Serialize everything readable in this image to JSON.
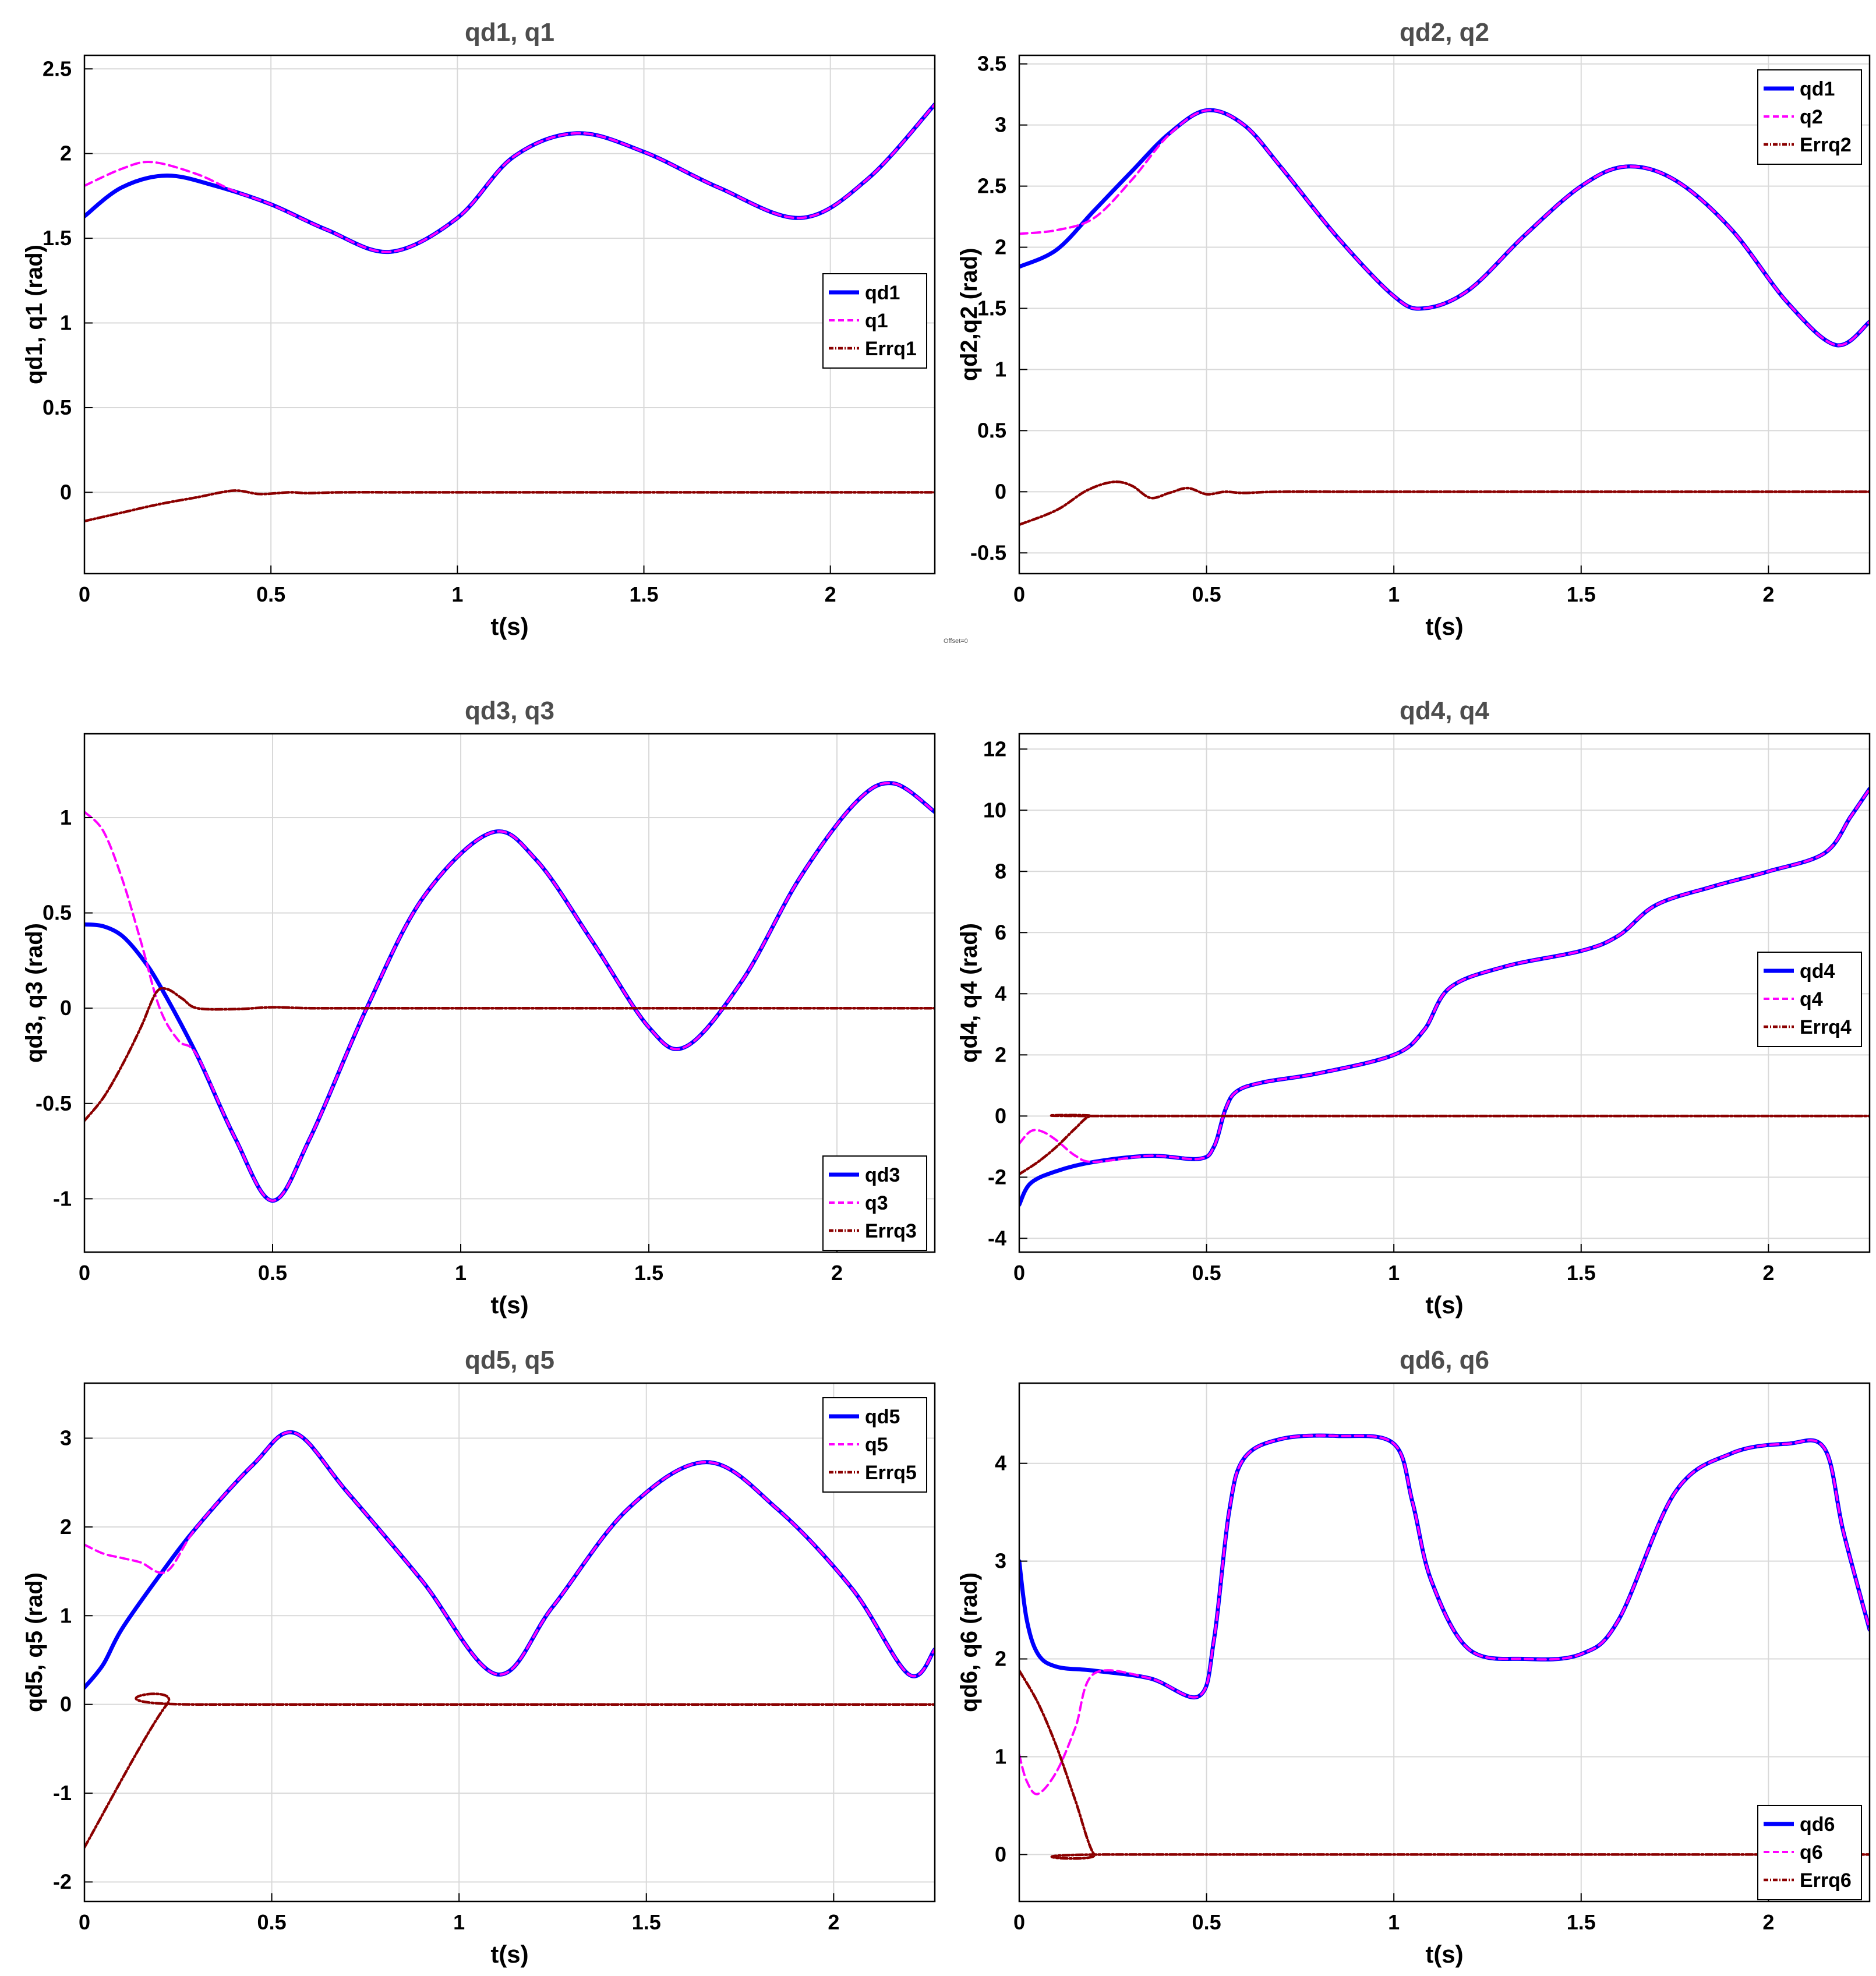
{
  "colors": {
    "desired": "#0000ff",
    "actual": "#ff00ff",
    "error": "#8b0000",
    "grid": "#d9d9d9",
    "axis": "#000000",
    "title": "#4d4d4d"
  },
  "misc": {
    "offset_note": "Offset=0"
  },
  "chart_data": [
    {
      "type": "line",
      "title": "qd1, q1",
      "xlabel": "t(s)",
      "ylabel": "qd1, q1 (rad)",
      "xlim": [
        0,
        2.28
      ],
      "ylim": [
        -0.48,
        2.58
      ],
      "xticks": [
        0,
        0.5,
        1,
        1.5,
        2
      ],
      "xtick_labels": [
        "0",
        "0.5",
        "1",
        "1.5",
        "2"
      ],
      "yticks": [
        0,
        0.5,
        1,
        1.5,
        2,
        2.5
      ],
      "ytick_labels": [
        "0",
        "0.5",
        "1",
        "1.5",
        "2",
        "2.5"
      ],
      "grid": true,
      "legend_position": "middle-right",
      "series": [
        {
          "name": "qd1",
          "style": "solid",
          "x": [
            0,
            0.1,
            0.22,
            0.35,
            0.5,
            0.65,
            0.82,
            1.0,
            1.15,
            1.32,
            1.5,
            1.7,
            1.92,
            2.1,
            2.28
          ],
          "y": [
            1.63,
            1.8,
            1.87,
            1.81,
            1.7,
            1.55,
            1.42,
            1.62,
            1.98,
            2.12,
            2.01,
            1.8,
            1.62,
            1.85,
            2.29
          ]
        },
        {
          "name": "q1",
          "style": "dashed",
          "x": [
            0,
            0.1,
            0.18,
            0.3,
            0.4,
            0.5,
            0.65,
            0.82,
            1.0,
            1.15,
            1.32,
            1.5,
            1.7,
            1.92,
            2.1,
            2.28
          ],
          "y": [
            1.81,
            1.91,
            1.95,
            1.88,
            1.78,
            1.7,
            1.55,
            1.42,
            1.62,
            1.98,
            2.12,
            2.01,
            1.8,
            1.62,
            1.85,
            2.29
          ]
        },
        {
          "name": "Errq1",
          "style": "dashdot",
          "x": [
            0,
            0.1,
            0.2,
            0.3,
            0.4,
            0.47,
            0.55,
            0.6,
            0.7,
            1.0,
            2.28
          ],
          "y": [
            -0.17,
            -0.12,
            -0.07,
            -0.03,
            0.01,
            -0.01,
            0.0,
            -0.005,
            0.0,
            0.0,
            0.0
          ]
        }
      ]
    },
    {
      "type": "line",
      "title": "qd2, q2",
      "xlabel": "t(s)",
      "ylabel": "qd2,q2 (rad)",
      "xlim": [
        0,
        2.27
      ],
      "ylim": [
        -0.67,
        3.57
      ],
      "xticks": [
        0,
        0.5,
        1,
        1.5,
        2
      ],
      "xtick_labels": [
        "0",
        "0.5",
        "1",
        "1.5",
        "2"
      ],
      "yticks": [
        -0.5,
        0,
        0.5,
        1,
        1.5,
        2,
        2.5,
        3,
        3.5
      ],
      "ytick_labels": [
        "-0.5",
        "0",
        "0.5",
        "1",
        "1.5",
        "2",
        "2.5",
        "3",
        "3.5"
      ],
      "grid": true,
      "legend_position": "top-right",
      "series": [
        {
          "name": "qd1",
          "style": "solid",
          "x": [
            0,
            0.1,
            0.2,
            0.3,
            0.4,
            0.5,
            0.6,
            0.7,
            0.85,
            1.0,
            1.08,
            1.2,
            1.35,
            1.5,
            1.62,
            1.75,
            1.9,
            2.05,
            2.18,
            2.27
          ],
          "y": [
            1.84,
            1.98,
            2.3,
            2.62,
            2.93,
            3.12,
            3.0,
            2.65,
            2.08,
            1.6,
            1.5,
            1.65,
            2.1,
            2.5,
            2.66,
            2.55,
            2.15,
            1.55,
            1.2,
            1.39
          ]
        },
        {
          "name": "q2",
          "style": "dashed",
          "x": [
            0,
            0.1,
            0.2,
            0.3,
            0.4,
            0.5,
            0.6,
            0.7,
            0.85,
            1.0,
            1.08,
            1.2,
            1.35,
            1.5,
            1.62,
            1.75,
            1.9,
            2.05,
            2.18,
            2.27
          ],
          "y": [
            2.11,
            2.14,
            2.24,
            2.55,
            2.92,
            3.12,
            3.0,
            2.65,
            2.08,
            1.6,
            1.5,
            1.65,
            2.1,
            2.5,
            2.66,
            2.55,
            2.15,
            1.55,
            1.2,
            1.39
          ]
        },
        {
          "name": "Errq2",
          "style": "dashdot",
          "x": [
            0,
            0.1,
            0.18,
            0.25,
            0.3,
            0.35,
            0.4,
            0.45,
            0.5,
            0.55,
            0.6,
            0.7,
            1.0,
            2.27
          ],
          "y": [
            -0.27,
            -0.15,
            0.01,
            0.08,
            0.05,
            -0.05,
            -0.01,
            0.03,
            -0.02,
            0.0,
            -0.01,
            0.0,
            0.0,
            0.0
          ]
        }
      ]
    },
    {
      "type": "line",
      "title": "qd3, q3",
      "xlabel": "t(s)",
      "ylabel": "qd3, q3 (rad)",
      "xlim": [
        0,
        2.26
      ],
      "ylim": [
        -1.28,
        1.44
      ],
      "xticks": [
        0,
        0.5,
        1,
        1.5,
        2
      ],
      "xtick_labels": [
        "0",
        "0.5",
        "1",
        "1.5",
        "2"
      ],
      "yticks": [
        -1,
        -0.5,
        0,
        0.5,
        1
      ],
      "ytick_labels": [
        "-1",
        "-0.5",
        "0",
        "0.5",
        "1"
      ],
      "grid": true,
      "legend_position": "bottom-right",
      "series": [
        {
          "name": "qd3",
          "style": "solid",
          "x": [
            0,
            0.05,
            0.1,
            0.15,
            0.2,
            0.3,
            0.4,
            0.5,
            0.6,
            0.75,
            0.9,
            1.08,
            1.2,
            1.35,
            1.5,
            1.6,
            1.75,
            1.9,
            2.05,
            2.15,
            2.26
          ],
          "y": [
            0.44,
            0.43,
            0.38,
            0.27,
            0.12,
            -0.25,
            -0.68,
            -1.01,
            -0.68,
            0.0,
            0.58,
            0.92,
            0.78,
            0.35,
            -0.1,
            -0.2,
            0.15,
            0.68,
            1.08,
            1.18,
            1.03
          ]
        },
        {
          "name": "q3",
          "style": "dashed",
          "x": [
            0,
            0.05,
            0.1,
            0.15,
            0.2,
            0.25,
            0.3,
            0.4,
            0.5,
            0.6,
            0.75,
            0.9,
            1.08,
            1.2,
            1.35,
            1.5,
            1.6,
            1.75,
            1.9,
            2.05,
            2.15,
            2.26
          ],
          "y": [
            1.03,
            0.93,
            0.68,
            0.35,
            0.0,
            -0.17,
            -0.25,
            -0.68,
            -1.01,
            -0.68,
            0.0,
            0.58,
            0.92,
            0.78,
            0.35,
            -0.1,
            -0.2,
            0.15,
            0.68,
            1.08,
            1.18,
            1.03
          ]
        },
        {
          "name": "Errq3",
          "style": "dashdot",
          "x": [
            0,
            0.05,
            0.1,
            0.15,
            0.19,
            0.22,
            0.26,
            0.3,
            0.4,
            0.5,
            0.6,
            0.8,
            2.26
          ],
          "y": [
            -0.59,
            -0.47,
            -0.3,
            -0.1,
            0.08,
            0.1,
            0.05,
            0.0,
            -0.005,
            0.005,
            0.0,
            0.0,
            0.0
          ]
        }
      ]
    },
    {
      "type": "line",
      "title": "qd4, q4",
      "xlabel": "t(s)",
      "ylabel": "qd4, q4 (rad)",
      "xlim": [
        0,
        2.27
      ],
      "ylim": [
        -4.45,
        12.5
      ],
      "xticks": [
        0,
        0.5,
        1,
        1.5,
        2
      ],
      "xtick_labels": [
        "0",
        "0.5",
        "1",
        "1.5",
        "2"
      ],
      "yticks": [
        -4,
        -2,
        0,
        2,
        4,
        6,
        8,
        10,
        12
      ],
      "ytick_labels": [
        "-4",
        "-2",
        "0",
        "2",
        "4",
        "6",
        "8",
        "10",
        "12"
      ],
      "grid": true,
      "legend_position": "middle-right",
      "series": [
        {
          "name": "qd4",
          "style": "solid",
          "x": [
            0,
            0.03,
            0.1,
            0.2,
            0.35,
            0.48,
            0.52,
            0.55,
            0.58,
            0.65,
            0.8,
            1.0,
            1.08,
            1.15,
            1.3,
            1.5,
            1.6,
            1.7,
            1.85,
            2.0,
            2.15,
            2.22,
            2.27
          ],
          "y": [
            -2.9,
            -2.2,
            -1.8,
            -1.5,
            -1.3,
            -1.4,
            -1.0,
            0.2,
            0.8,
            1.1,
            1.4,
            2.0,
            2.8,
            4.2,
            4.9,
            5.4,
            5.9,
            6.9,
            7.5,
            8.0,
            8.6,
            9.8,
            10.7
          ]
        },
        {
          "name": "q4",
          "style": "dashed",
          "x": [
            0,
            0.03,
            0.06,
            0.1,
            0.15,
            0.2,
            0.35,
            0.48,
            0.52,
            0.55,
            0.58,
            0.65,
            0.8,
            1.0,
            1.08,
            1.15,
            1.3,
            1.5,
            1.6,
            1.7,
            1.85,
            2.0,
            2.15,
            2.22,
            2.27
          ],
          "y": [
            -0.9,
            -0.5,
            -0.5,
            -0.8,
            -1.3,
            -1.5,
            -1.3,
            -1.4,
            -1.0,
            0.2,
            0.8,
            1.1,
            1.4,
            2.0,
            2.8,
            4.2,
            4.9,
            5.4,
            5.9,
            6.9,
            7.5,
            8.0,
            8.6,
            9.8,
            10.7
          ]
        },
        {
          "name": "Errq4",
          "style": "dashdot",
          "x": [
            0,
            0.05,
            0.1,
            0.15,
            0.19,
            0.25,
            2.27
          ],
          "y": [
            -1.9,
            -1.5,
            -1.0,
            -0.4,
            0.0,
            0.0,
            0.0
          ]
        }
      ]
    },
    {
      "type": "line",
      "title": "qd5, q5",
      "xlabel": "t(s)",
      "ylabel": "qd5, q5 (rad)",
      "xlim": [
        0,
        2.27
      ],
      "ylim": [
        -2.22,
        3.62
      ],
      "xticks": [
        0,
        0.5,
        1,
        1.5,
        2
      ],
      "xtick_labels": [
        "0",
        "0.5",
        "1",
        "1.5",
        "2"
      ],
      "yticks": [
        -2,
        -1,
        0,
        1,
        2,
        3
      ],
      "ytick_labels": [
        "-2",
        "-1",
        "0",
        "1",
        "2",
        "3"
      ],
      "grid": true,
      "legend_position": "top-right",
      "series": [
        {
          "name": "qd5",
          "style": "solid",
          "x": [
            0,
            0.05,
            0.1,
            0.2,
            0.3,
            0.45,
            0.56,
            0.7,
            0.9,
            1.1,
            1.25,
            1.45,
            1.66,
            1.85,
            2.05,
            2.2,
            2.27
          ],
          "y": [
            0.19,
            0.45,
            0.85,
            1.45,
            2.0,
            2.7,
            3.06,
            2.4,
            1.4,
            0.34,
            1.1,
            2.2,
            2.73,
            2.2,
            1.3,
            0.34,
            0.62
          ]
        },
        {
          "name": "q5",
          "style": "dashed",
          "x": [
            0,
            0.05,
            0.1,
            0.15,
            0.22,
            0.3,
            0.45,
            0.56,
            0.7,
            0.9,
            1.1,
            1.25,
            1.45,
            1.66,
            1.85,
            2.05,
            2.2,
            2.27
          ],
          "y": [
            1.8,
            1.7,
            1.65,
            1.6,
            1.5,
            2.0,
            2.7,
            3.06,
            2.4,
            1.4,
            0.34,
            1.1,
            2.2,
            2.73,
            2.2,
            1.3,
            0.34,
            0.62
          ]
        },
        {
          "name": "Errq5",
          "style": "dashdot",
          "x": [
            0,
            0.22,
            0.3,
            2.27
          ],
          "y": [
            -1.61,
            0.0,
            0.0,
            0.0
          ]
        }
      ]
    },
    {
      "type": "line",
      "title": "qd6, q6",
      "xlabel": "t(s)",
      "ylabel": "qd6, q6 (rad)",
      "xlim": [
        0,
        2.27
      ],
      "ylim": [
        -0.48,
        4.82
      ],
      "xticks": [
        0,
        0.5,
        1,
        1.5,
        2
      ],
      "xtick_labels": [
        "0",
        "0.5",
        "1",
        "1.5",
        "2"
      ],
      "yticks": [
        0,
        1,
        2,
        3,
        4
      ],
      "ytick_labels": [
        "0",
        "1",
        "2",
        "3",
        "4"
      ],
      "grid": true,
      "legend_position": "bottom-right",
      "series": [
        {
          "name": "qd6",
          "style": "solid",
          "x": [
            0,
            0.02,
            0.05,
            0.1,
            0.2,
            0.35,
            0.48,
            0.52,
            0.56,
            0.6,
            0.7,
            0.85,
            1.0,
            1.05,
            1.1,
            1.2,
            1.35,
            1.5,
            1.6,
            1.75,
            1.9,
            2.05,
            2.15,
            2.2,
            2.27
          ],
          "y": [
            3.0,
            2.4,
            2.05,
            1.92,
            1.88,
            1.8,
            1.62,
            2.2,
            3.5,
            4.05,
            4.25,
            4.28,
            4.2,
            3.6,
            2.8,
            2.1,
            2.0,
            2.05,
            2.4,
            3.7,
            4.1,
            4.2,
            4.15,
            3.3,
            2.3
          ]
        },
        {
          "name": "q6",
          "style": "dashed",
          "x": [
            0,
            0.02,
            0.05,
            0.1,
            0.15,
            0.2,
            0.35,
            0.48,
            0.52,
            0.56,
            0.6,
            0.7,
            0.85,
            1.0,
            1.05,
            1.1,
            1.2,
            1.35,
            1.5,
            1.6,
            1.75,
            1.9,
            2.05,
            2.15,
            2.2,
            2.27
          ],
          "y": [
            1.02,
            0.75,
            0.62,
            0.85,
            1.3,
            1.85,
            1.8,
            1.62,
            2.2,
            3.5,
            4.05,
            4.25,
            4.28,
            4.2,
            3.6,
            2.8,
            2.1,
            2.0,
            2.05,
            2.4,
            3.7,
            4.1,
            4.2,
            4.15,
            3.3,
            2.3
          ]
        },
        {
          "name": "Errq6",
          "style": "dashdot",
          "x": [
            0,
            0.05,
            0.1,
            0.15,
            0.2,
            0.25,
            2.27
          ],
          "y": [
            1.88,
            1.55,
            1.1,
            0.55,
            0.0,
            0.0,
            0.0
          ]
        }
      ]
    }
  ]
}
